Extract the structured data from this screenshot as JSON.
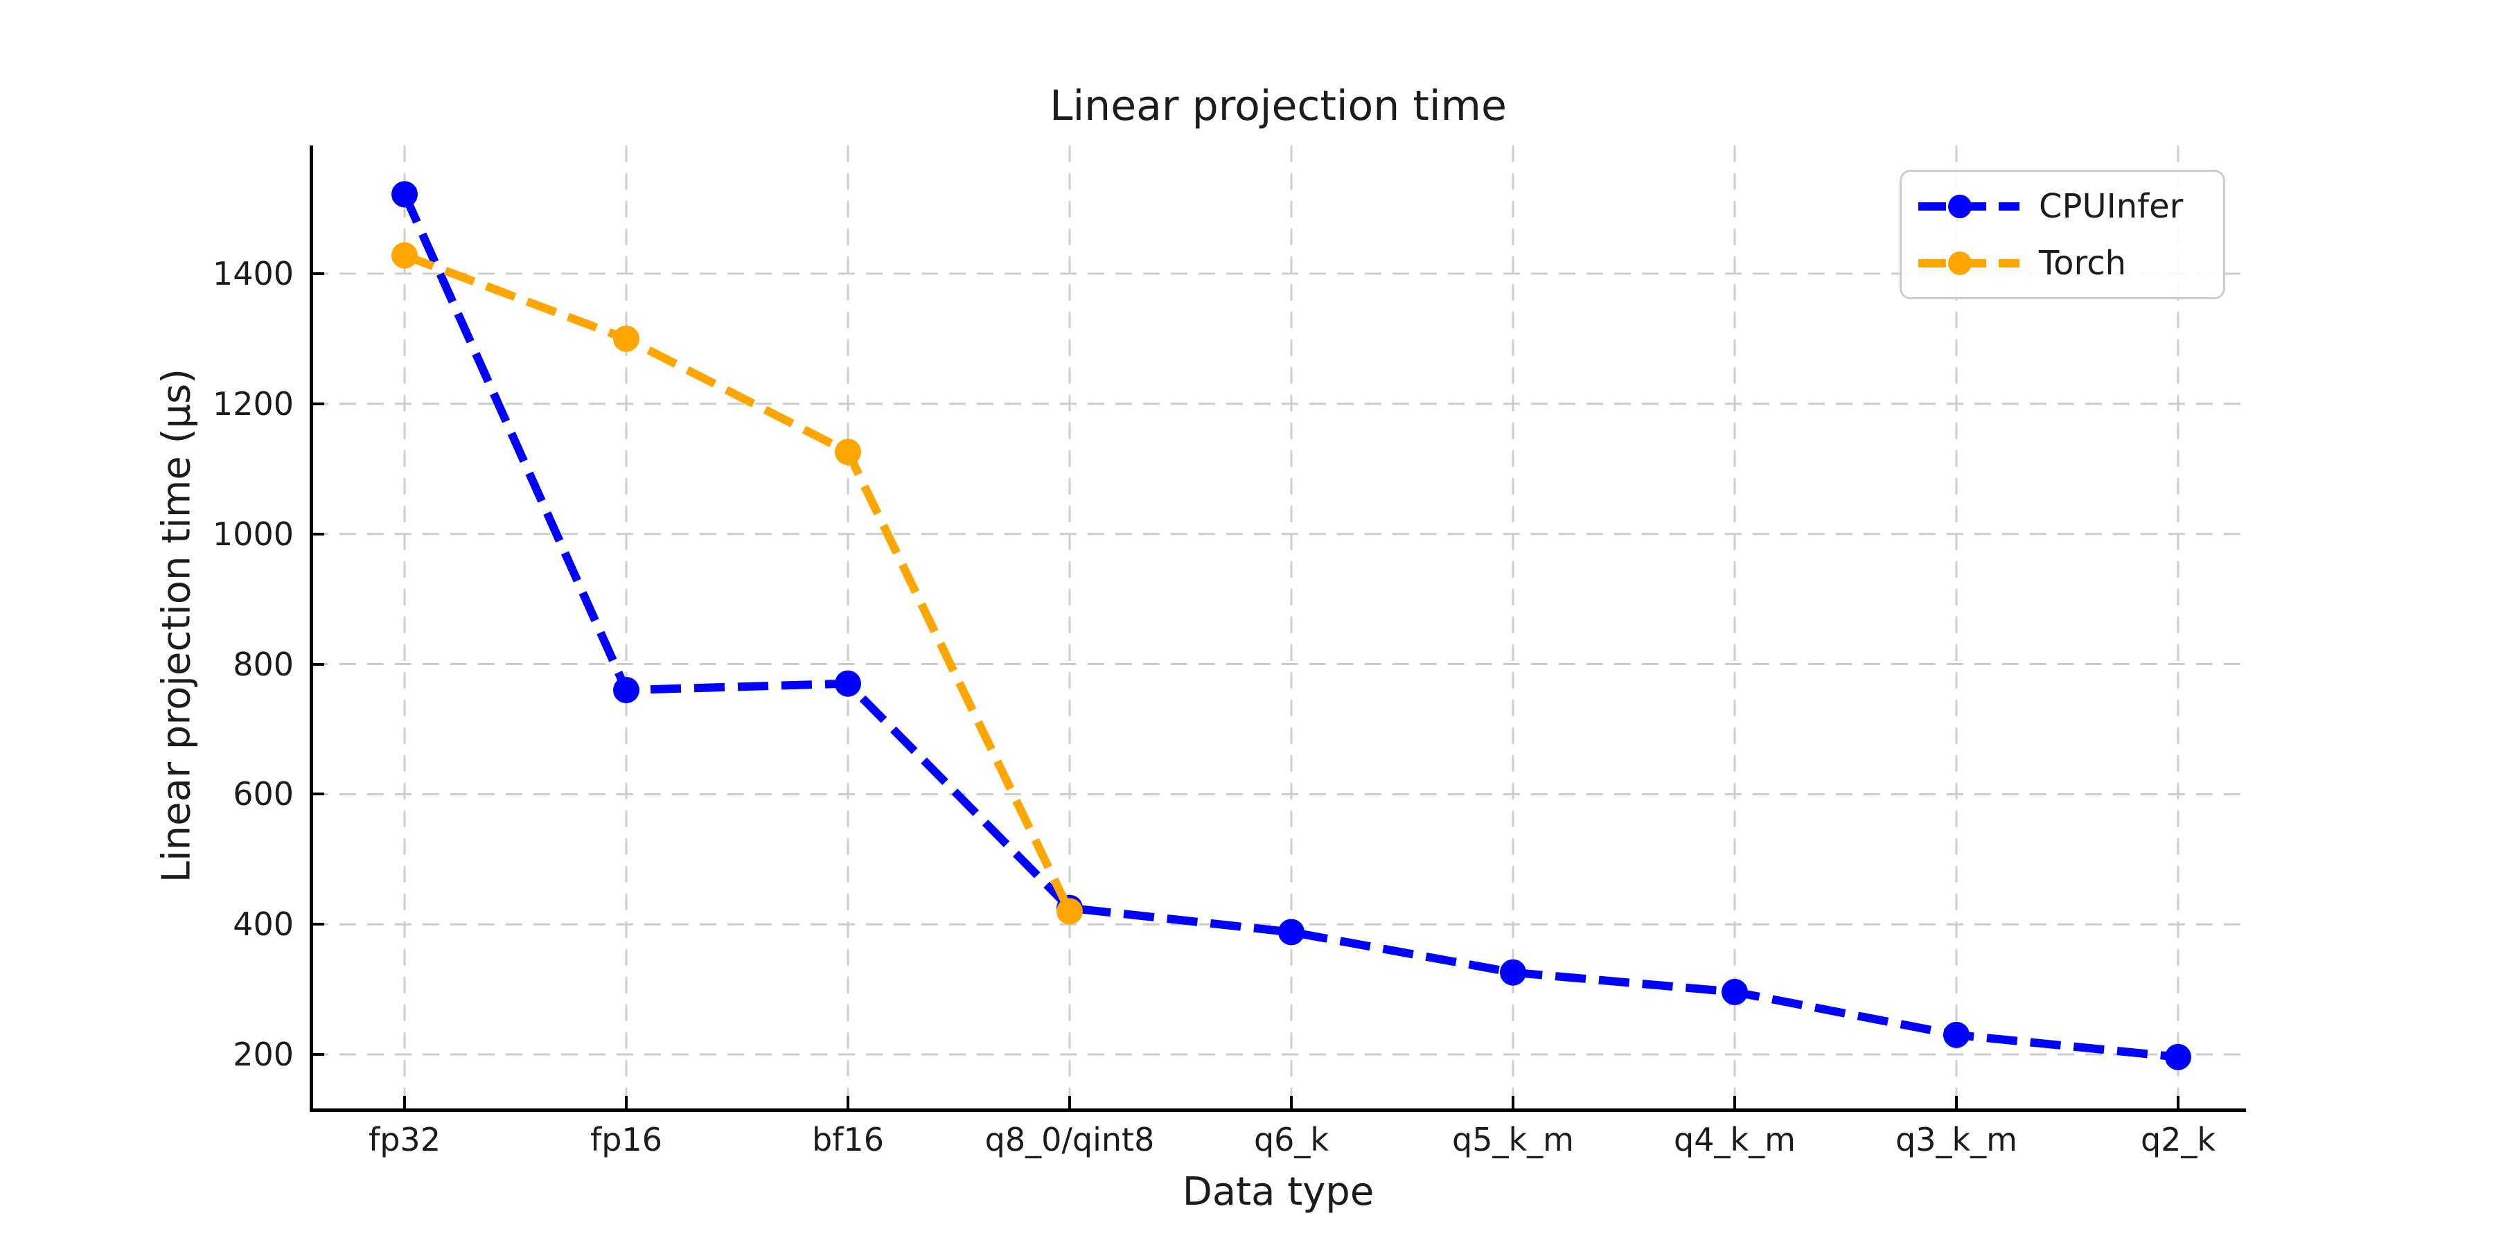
{
  "figure": {
    "background": "#ffffff",
    "text_color": "#1c1c1c",
    "spine_color": "#000000"
  },
  "chart_data": {
    "type": "line",
    "title": "Linear projection time",
    "xlabel": "Data type",
    "ylabel": "Linear projection time (μs)",
    "categories": [
      "fp32",
      "fp16",
      "bf16",
      "q8_0/qint8",
      "q6_k",
      "q5_k_m",
      "q4_k_m",
      "q3_k_m",
      "q2_k"
    ],
    "series": [
      {
        "name": "CPUInfer",
        "color": "#0000ff",
        "values": [
          1522,
          760,
          770,
          425,
          388,
          326,
          296,
          230,
          196
        ]
      },
      {
        "name": "Torch",
        "color": "#ffa500",
        "values": [
          1428,
          1300,
          1126,
          420,
          null,
          null,
          null,
          null,
          null
        ]
      }
    ],
    "yticks": [
      200,
      400,
      600,
      800,
      1000,
      1200,
      1400
    ],
    "ylim": [
      117,
      1597
    ],
    "grid": true,
    "grid_color": "#cccccc",
    "line_style": "dashed",
    "marker": "circle",
    "legend_position": "upper right",
    "legend_entries": [
      "CPUInfer",
      "Torch"
    ]
  }
}
